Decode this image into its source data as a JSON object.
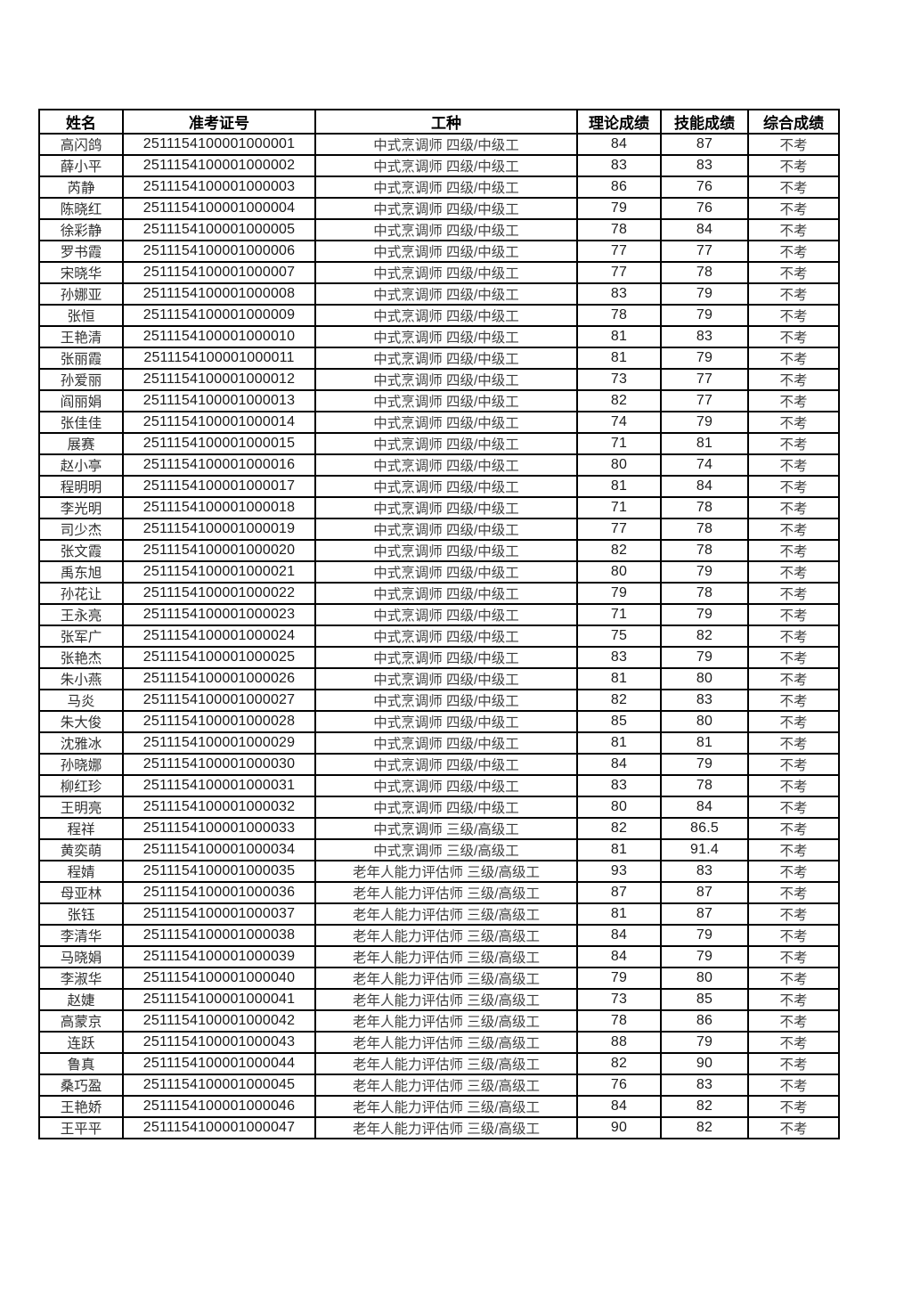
{
  "page": {
    "background_color": "#ffffff",
    "border_color": "#000000"
  },
  "table": {
    "headers": [
      "姓名",
      "准考证号",
      "工种",
      "理论成绩",
      "技能成绩",
      "综合成绩"
    ],
    "column_names": [
      "name-cell",
      "exam-id-cell",
      "occupation-cell",
      "theory-score-cell",
      "skill-score-cell",
      "overall-score-cell"
    ],
    "rows": [
      [
        "高闪鸽",
        "2511154100001000001",
        "中式烹调师 四级/中级工",
        "84",
        "87",
        "不考"
      ],
      [
        "薛小平",
        "2511154100001000002",
        "中式烹调师 四级/中级工",
        "83",
        "83",
        "不考"
      ],
      [
        "芮静",
        "2511154100001000003",
        "中式烹调师 四级/中级工",
        "86",
        "76",
        "不考"
      ],
      [
        "陈晓红",
        "2511154100001000004",
        "中式烹调师 四级/中级工",
        "79",
        "76",
        "不考"
      ],
      [
        "徐彩静",
        "2511154100001000005",
        "中式烹调师 四级/中级工",
        "78",
        "84",
        "不考"
      ],
      [
        "罗书霞",
        "2511154100001000006",
        "中式烹调师 四级/中级工",
        "77",
        "77",
        "不考"
      ],
      [
        "宋晓华",
        "2511154100001000007",
        "中式烹调师 四级/中级工",
        "77",
        "78",
        "不考"
      ],
      [
        "孙娜亚",
        "2511154100001000008",
        "中式烹调师 四级/中级工",
        "83",
        "79",
        "不考"
      ],
      [
        "张恒",
        "2511154100001000009",
        "中式烹调师 四级/中级工",
        "78",
        "79",
        "不考"
      ],
      [
        "王艳清",
        "2511154100001000010",
        "中式烹调师 四级/中级工",
        "81",
        "83",
        "不考"
      ],
      [
        "张丽霞",
        "2511154100001000011",
        "中式烹调师 四级/中级工",
        "81",
        "79",
        "不考"
      ],
      [
        "孙爱丽",
        "2511154100001000012",
        "中式烹调师 四级/中级工",
        "73",
        "77",
        "不考"
      ],
      [
        "阎丽娟",
        "2511154100001000013",
        "中式烹调师 四级/中级工",
        "82",
        "77",
        "不考"
      ],
      [
        "张佳佳",
        "2511154100001000014",
        "中式烹调师 四级/中级工",
        "74",
        "79",
        "不考"
      ],
      [
        "展赛",
        "2511154100001000015",
        "中式烹调师 四级/中级工",
        "71",
        "81",
        "不考"
      ],
      [
        "赵小亭",
        "2511154100001000016",
        "中式烹调师 四级/中级工",
        "80",
        "74",
        "不考"
      ],
      [
        "程明明",
        "2511154100001000017",
        "中式烹调师 四级/中级工",
        "81",
        "84",
        "不考"
      ],
      [
        "李光明",
        "2511154100001000018",
        "中式烹调师 四级/中级工",
        "71",
        "78",
        "不考"
      ],
      [
        "司少杰",
        "2511154100001000019",
        "中式烹调师 四级/中级工",
        "77",
        "78",
        "不考"
      ],
      [
        "张文霞",
        "2511154100001000020",
        "中式烹调师 四级/中级工",
        "82",
        "78",
        "不考"
      ],
      [
        "禹东旭",
        "2511154100001000021",
        "中式烹调师 四级/中级工",
        "80",
        "79",
        "不考"
      ],
      [
        "孙花让",
        "2511154100001000022",
        "中式烹调师 四级/中级工",
        "79",
        "78",
        "不考"
      ],
      [
        "王永亮",
        "2511154100001000023",
        "中式烹调师 四级/中级工",
        "71",
        "79",
        "不考"
      ],
      [
        "张军广",
        "2511154100001000024",
        "中式烹调师 四级/中级工",
        "75",
        "82",
        "不考"
      ],
      [
        "张艳杰",
        "2511154100001000025",
        "中式烹调师 四级/中级工",
        "83",
        "79",
        "不考"
      ],
      [
        "朱小燕",
        "2511154100001000026",
        "中式烹调师 四级/中级工",
        "81",
        "80",
        "不考"
      ],
      [
        "马炎",
        "2511154100001000027",
        "中式烹调师 四级/中级工",
        "82",
        "83",
        "不考"
      ],
      [
        "朱大俊",
        "2511154100001000028",
        "中式烹调师 四级/中级工",
        "85",
        "80",
        "不考"
      ],
      [
        "沈雅冰",
        "2511154100001000029",
        "中式烹调师 四级/中级工",
        "81",
        "81",
        "不考"
      ],
      [
        "孙晓娜",
        "2511154100001000030",
        "中式烹调师 四级/中级工",
        "84",
        "79",
        "不考"
      ],
      [
        "柳红珍",
        "2511154100001000031",
        "中式烹调师 四级/中级工",
        "83",
        "78",
        "不考"
      ],
      [
        "王明亮",
        "2511154100001000032",
        "中式烹调师 四级/中级工",
        "80",
        "84",
        "不考"
      ],
      [
        "程祥",
        "2511154100001000033",
        "中式烹调师 三级/高级工",
        "82",
        "86.5",
        "不考"
      ],
      [
        "黄奕萌",
        "2511154100001000034",
        "中式烹调师 三级/高级工",
        "81",
        "91.4",
        "不考"
      ],
      [
        "程婧",
        "2511154100001000035",
        "老年人能力评估师 三级/高级工",
        "93",
        "83",
        "不考"
      ],
      [
        "母亚林",
        "2511154100001000036",
        "老年人能力评估师 三级/高级工",
        "87",
        "87",
        "不考"
      ],
      [
        "张钰",
        "2511154100001000037",
        "老年人能力评估师 三级/高级工",
        "81",
        "87",
        "不考"
      ],
      [
        "李清华",
        "2511154100001000038",
        "老年人能力评估师 三级/高级工",
        "84",
        "79",
        "不考"
      ],
      [
        "马晓娟",
        "2511154100001000039",
        "老年人能力评估师 三级/高级工",
        "84",
        "79",
        "不考"
      ],
      [
        "李淑华",
        "2511154100001000040",
        "老年人能力评估师 三级/高级工",
        "79",
        "80",
        "不考"
      ],
      [
        "赵婕",
        "2511154100001000041",
        "老年人能力评估师 三级/高级工",
        "73",
        "85",
        "不考"
      ],
      [
        "高蒙京",
        "2511154100001000042",
        "老年人能力评估师 三级/高级工",
        "78",
        "86",
        "不考"
      ],
      [
        "连跃",
        "2511154100001000043",
        "老年人能力评估师 三级/高级工",
        "88",
        "79",
        "不考"
      ],
      [
        "鲁真",
        "2511154100001000044",
        "老年人能力评估师 三级/高级工",
        "82",
        "90",
        "不考"
      ],
      [
        "桑巧盈",
        "2511154100001000045",
        "老年人能力评估师 三级/高级工",
        "76",
        "83",
        "不考"
      ],
      [
        "王艳娇",
        "2511154100001000046",
        "老年人能力评估师 三级/高级工",
        "84",
        "82",
        "不考"
      ],
      [
        "王平平",
        "2511154100001000047",
        "老年人能力评估师 三级/高级工",
        "90",
        "82",
        "不考"
      ]
    ]
  }
}
